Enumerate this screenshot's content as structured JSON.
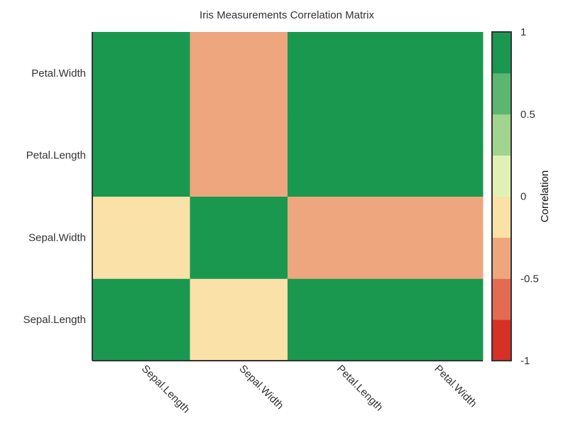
{
  "chart_data": {
    "type": "heatmap",
    "title": "Iris Measurements Correlation Matrix",
    "x_categories": [
      "Sepal.Length",
      "Sepal.Width",
      "Petal.Length",
      "Petal.Width"
    ],
    "y_categories": [
      "Sepal.Length",
      "Sepal.Width",
      "Petal.Length",
      "Petal.Width"
    ],
    "values": [
      [
        1.0,
        -0.12,
        0.87,
        0.82
      ],
      [
        -0.12,
        1.0,
        -0.43,
        -0.37
      ],
      [
        0.87,
        -0.43,
        1.0,
        0.96
      ],
      [
        0.82,
        -0.37,
        0.96,
        1.0
      ]
    ],
    "colorbar": {
      "label": "Correlation",
      "range": [
        -1,
        1
      ],
      "ticks": [
        1,
        0.5,
        0,
        -0.5,
        -1
      ],
      "tick_labels": [
        "1",
        "0.5",
        "0",
        "-0.5",
        "-1"
      ],
      "bins": [
        {
          "from": -1.0,
          "to": -0.75,
          "color": "#d73027"
        },
        {
          "from": -0.75,
          "to": -0.5,
          "color": "#e46b53"
        },
        {
          "from": -0.5,
          "to": -0.25,
          "color": "#eea67e"
        },
        {
          "from": -0.25,
          "to": 0.0,
          "color": "#f9e1a8"
        },
        {
          "from": 0.0,
          "to": 0.25,
          "color": "#e1f1b5"
        },
        {
          "from": 0.25,
          "to": 0.5,
          "color": "#a1d48e"
        },
        {
          "from": 0.5,
          "to": 0.75,
          "color": "#5db66f"
        },
        {
          "from": 0.75,
          "to": 1.0,
          "color": "#1a9850"
        }
      ]
    }
  }
}
